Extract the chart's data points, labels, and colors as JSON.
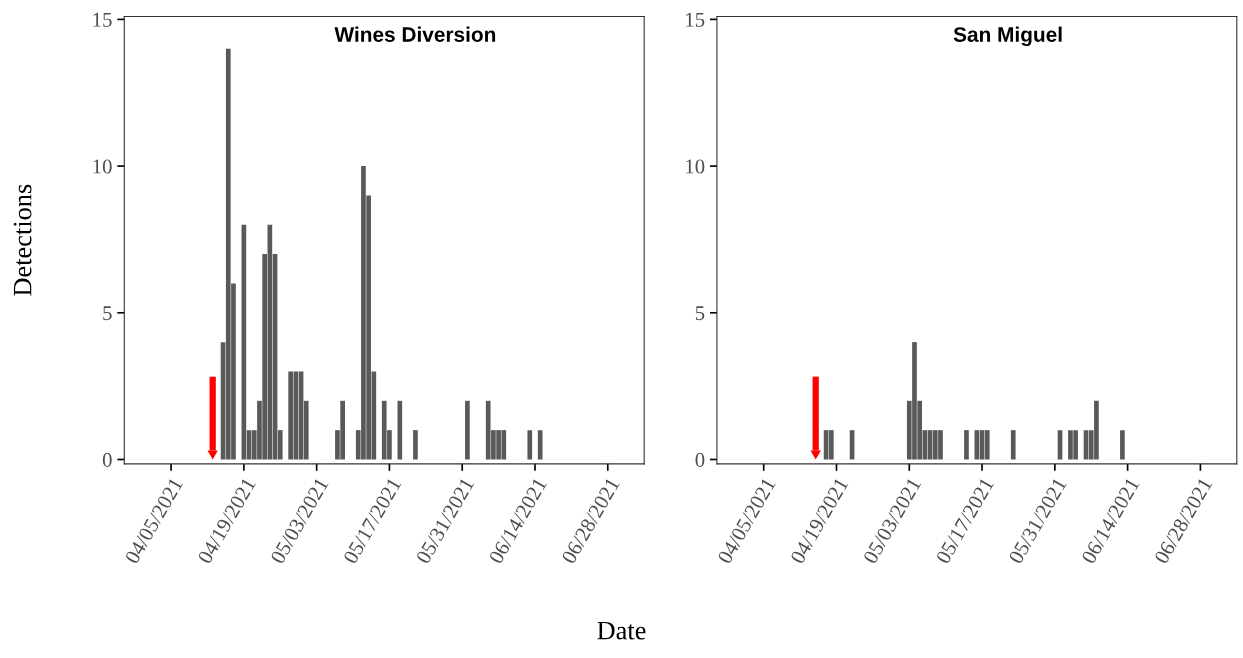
{
  "chart_data": [
    {
      "type": "bar",
      "title": "Wines Diversion",
      "ylabel": "Detections",
      "xlabel": "Date",
      "color": "#595959",
      "x": [
        "2021-04-15",
        "2021-04-16",
        "2021-04-17",
        "2021-04-19",
        "2021-04-20",
        "2021-04-21",
        "2021-04-22",
        "2021-04-23",
        "2021-04-24",
        "2021-04-25",
        "2021-04-26",
        "2021-04-28",
        "2021-04-29",
        "2021-04-30",
        "2021-05-01",
        "2021-05-07",
        "2021-05-08",
        "2021-05-11",
        "2021-05-12",
        "2021-05-13",
        "2021-05-14",
        "2021-05-16",
        "2021-05-17",
        "2021-05-19",
        "2021-05-22",
        "2021-06-01",
        "2021-06-05",
        "2021-06-06",
        "2021-06-07",
        "2021-06-08",
        "2021-06-13",
        "2021-06-15"
      ],
      "values": [
        4,
        14,
        6,
        8,
        1,
        1,
        2,
        7,
        8,
        7,
        1,
        3,
        3,
        3,
        2,
        1,
        2,
        1,
        10,
        9,
        3,
        2,
        1,
        2,
        1,
        2,
        2,
        1,
        1,
        1,
        1,
        1
      ],
      "xlim": [
        "2021-03-27",
        "2021-07-05"
      ],
      "xticks": [
        {
          "value": "2021-04-05",
          "label": "04/05/2021"
        },
        {
          "value": "2021-04-19",
          "label": "04/19/2021"
        },
        {
          "value": "2021-05-03",
          "label": "05/03/2021"
        },
        {
          "value": "2021-05-17",
          "label": "05/17/2021"
        },
        {
          "value": "2021-05-31",
          "label": "05/31/2021"
        },
        {
          "value": "2021-06-14",
          "label": "06/14/2021"
        },
        {
          "value": "2021-06-28",
          "label": "06/28/2021"
        }
      ],
      "ylim": [
        -0.15,
        15.1
      ],
      "yticks": [
        0,
        5,
        10,
        15
      ],
      "ref_lines": [
        {
          "axis": "x",
          "value": "2021-04-13",
          "color": "#ff0000"
        }
      ]
    },
    {
      "type": "bar",
      "title": "San Miguel",
      "color": "#595959",
      "x": [
        "2021-04-17",
        "2021-04-18",
        "2021-04-22",
        "2021-05-03",
        "2021-05-04",
        "2021-05-05",
        "2021-05-06",
        "2021-05-07",
        "2021-05-08",
        "2021-05-09",
        "2021-05-14",
        "2021-05-16",
        "2021-05-17",
        "2021-05-18",
        "2021-05-23",
        "2021-06-01",
        "2021-06-03",
        "2021-06-04",
        "2021-06-06",
        "2021-06-07",
        "2021-06-08",
        "2021-06-13"
      ],
      "values": [
        1,
        1,
        1,
        2,
        4,
        2,
        1,
        1,
        1,
        1,
        1,
        1,
        1,
        1,
        1,
        1,
        1,
        1,
        1,
        1,
        2,
        1
      ],
      "xlim": [
        "2021-03-27",
        "2021-07-05"
      ],
      "xticks": [
        {
          "value": "2021-04-05",
          "label": "04/05/2021"
        },
        {
          "value": "2021-04-19",
          "label": "04/19/2021"
        },
        {
          "value": "2021-05-03",
          "label": "05/03/2021"
        },
        {
          "value": "2021-05-17",
          "label": "05/17/2021"
        },
        {
          "value": "2021-05-31",
          "label": "05/31/2021"
        },
        {
          "value": "2021-06-14",
          "label": "06/14/2021"
        },
        {
          "value": "2021-06-28",
          "label": "06/28/2021"
        }
      ],
      "ylim": [
        -0.15,
        15.1
      ],
      "yticks": [
        0,
        5,
        10,
        15
      ],
      "ref_lines": [
        {
          "axis": "x",
          "value": "2021-04-15",
          "color": "#ff0000"
        }
      ]
    }
  ]
}
